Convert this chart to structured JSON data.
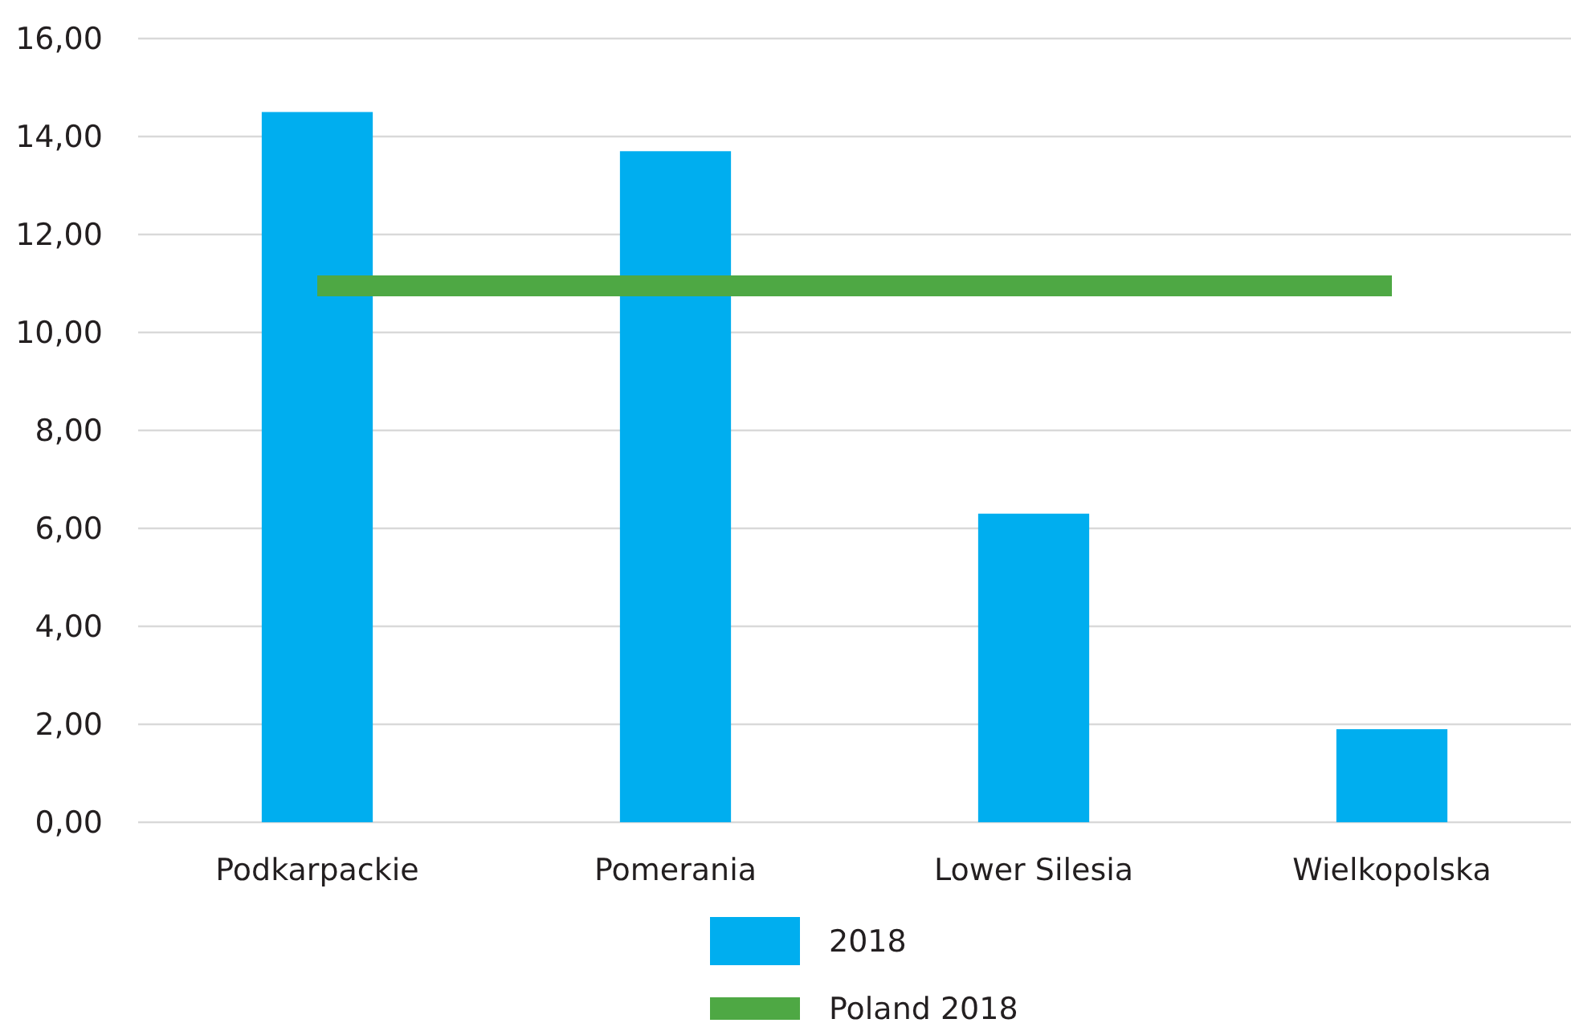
{
  "chart_data": {
    "type": "bar",
    "categories": [
      "Podkarpackie",
      "Pomerania",
      "Lower Silesia",
      "Wielkopolska"
    ],
    "series": [
      {
        "name": "2018",
        "color": "#00aeef",
        "values": [
          14.5,
          13.7,
          6.3,
          1.9
        ]
      },
      {
        "name": "Poland 2018",
        "type": "line",
        "color": "#4ea844",
        "values": [
          10.95,
          10.95,
          10.95,
          10.95
        ]
      }
    ],
    "ylim": [
      0,
      16
    ],
    "yticks": [
      {
        "value": 0,
        "label": "0,00"
      },
      {
        "value": 2,
        "label": "2,00"
      },
      {
        "value": 4,
        "label": "4,00"
      },
      {
        "value": 6,
        "label": "6,00"
      },
      {
        "value": 8,
        "label": "8,00"
      },
      {
        "value": 10,
        "label": "10,00"
      },
      {
        "value": 12,
        "label": "12,00"
      },
      {
        "value": 14,
        "label": "14,00"
      },
      {
        "value": 16,
        "label": "16,00"
      }
    ],
    "grid": "y",
    "legend": "bottom"
  }
}
